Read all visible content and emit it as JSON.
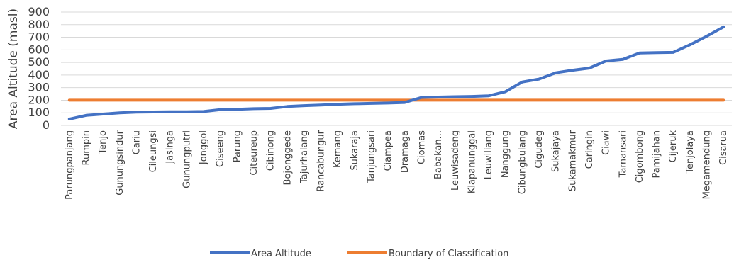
{
  "chart_data": {
    "type": "line",
    "title": "",
    "xlabel": "",
    "ylabel": "Area Altitude (masl)",
    "ylim": [
      0,
      900
    ],
    "yticks": [
      "0",
      "100",
      "200",
      "300",
      "400",
      "500",
      "600",
      "700",
      "800",
      "900"
    ],
    "grid": true,
    "legend_position": "bottom",
    "categories": [
      "Parungpanjang",
      "Rumpin",
      "Tenjo",
      "Gunungsindur",
      "Cariu",
      "Cileungsi",
      "Jasinga",
      "Gunungputri",
      "Jonggol",
      "Ciseeng",
      "Parung",
      "Citeureup",
      "Cibinong",
      "Bojonggede",
      "Tajurhalang",
      "Rancabungur",
      "Kemang",
      "Sukaraja",
      "Tanjungsari",
      "Ciampea",
      "Dramaga",
      "Ciomas",
      "Babakan...",
      "Leuwisadeng",
      "Klapanunggal",
      "Leuwiliang",
      "Nanggung",
      "Cibungbulang",
      "Cigudeg",
      "Sukajaya",
      "Sukamakmur",
      "Caringin",
      "Ciawi",
      "Tamansari",
      "Cigombong",
      "Pamijahan",
      "Cijeruk",
      "Tenjolaya",
      "Megamendung",
      "Cisarua"
    ],
    "series": [
      {
        "name": "Area Altitude",
        "color": "#4472C4",
        "values": [
          50,
          80,
          90,
          100,
          105,
          107,
          108,
          108,
          110,
          125,
          128,
          133,
          135,
          150,
          157,
          162,
          168,
          172,
          175,
          178,
          182,
          222,
          225,
          228,
          230,
          235,
          268,
          345,
          368,
          418,
          438,
          455,
          512,
          525,
          575,
          578,
          580,
          640,
          708,
          782
        ]
      },
      {
        "name": "Boundary of Classification",
        "color": "#ED7D31",
        "values": [
          200,
          200,
          200,
          200,
          200,
          200,
          200,
          200,
          200,
          200,
          200,
          200,
          200,
          200,
          200,
          200,
          200,
          200,
          200,
          200,
          200,
          200,
          200,
          200,
          200,
          200,
          200,
          200,
          200,
          200,
          200,
          200,
          200,
          200,
          200,
          200,
          200,
          200,
          200,
          200
        ]
      }
    ]
  }
}
